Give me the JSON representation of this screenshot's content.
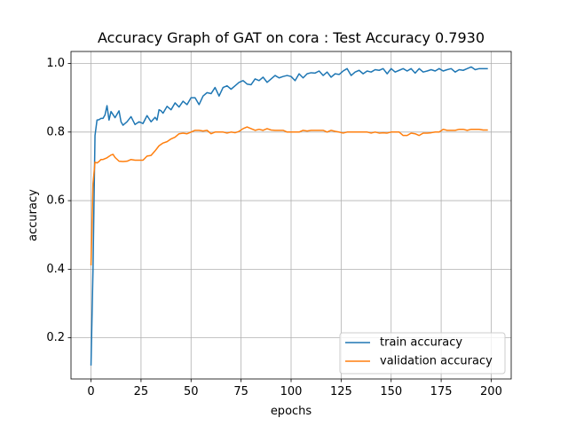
{
  "chart_data": {
    "type": "line",
    "title": "Accuracy Graph of GAT on cora : Test Accuracy 0.7930",
    "xlabel": "epochs",
    "ylabel": "accuracy",
    "xlim": [
      -10,
      210
    ],
    "ylim": [
      0.08,
      1.035
    ],
    "xticks": [
      0,
      25,
      50,
      75,
      100,
      125,
      150,
      175,
      200
    ],
    "yticks": [
      0.2,
      0.4,
      0.6,
      0.8,
      1.0
    ],
    "ytick_labels": [
      "0.2",
      "0.4",
      "0.6",
      "0.8",
      "1.0"
    ],
    "grid": true,
    "legend_position": "lower-right",
    "series": [
      {
        "name": "train accuracy",
        "color": "#1f77b4",
        "x": [
          0,
          1,
          2,
          3,
          4,
          5,
          6,
          7,
          8,
          9,
          10,
          12,
          14,
          15,
          16,
          18,
          20,
          22,
          24,
          26,
          28,
          30,
          32,
          33,
          34,
          35,
          36,
          38,
          40,
          42,
          44,
          46,
          48,
          50,
          52,
          54,
          56,
          58,
          60,
          62,
          64,
          66,
          68,
          70,
          72,
          74,
          76,
          78,
          80,
          82,
          84,
          86,
          88,
          90,
          92,
          94,
          96,
          98,
          100,
          102,
          104,
          106,
          108,
          110,
          112,
          114,
          116,
          118,
          120,
          122,
          124,
          126,
          128,
          130,
          132,
          134,
          136,
          138,
          140,
          142,
          144,
          146,
          148,
          150,
          152,
          154,
          156,
          158,
          160,
          162,
          164,
          166,
          168,
          170,
          172,
          174,
          176,
          178,
          180,
          182,
          184,
          186,
          188,
          190,
          192,
          194,
          196,
          198
        ],
        "y": [
          0.121,
          0.4,
          0.79,
          0.835,
          0.836,
          0.84,
          0.84,
          0.85,
          0.877,
          0.835,
          0.86,
          0.842,
          0.862,
          0.83,
          0.82,
          0.83,
          0.845,
          0.822,
          0.83,
          0.825,
          0.848,
          0.83,
          0.843,
          0.835,
          0.865,
          0.862,
          0.855,
          0.875,
          0.865,
          0.885,
          0.873,
          0.89,
          0.88,
          0.9,
          0.9,
          0.88,
          0.905,
          0.915,
          0.912,
          0.93,
          0.905,
          0.93,
          0.935,
          0.925,
          0.935,
          0.945,
          0.95,
          0.94,
          0.938,
          0.955,
          0.95,
          0.96,
          0.945,
          0.955,
          0.965,
          0.958,
          0.962,
          0.965,
          0.962,
          0.95,
          0.97,
          0.958,
          0.97,
          0.973,
          0.972,
          0.978,
          0.965,
          0.975,
          0.96,
          0.97,
          0.968,
          0.978,
          0.985,
          0.965,
          0.975,
          0.98,
          0.97,
          0.978,
          0.975,
          0.982,
          0.98,
          0.985,
          0.97,
          0.985,
          0.975,
          0.98,
          0.985,
          0.978,
          0.985,
          0.972,
          0.985,
          0.975,
          0.978,
          0.982,
          0.978,
          0.985,
          0.978,
          0.982,
          0.985,
          0.975,
          0.982,
          0.98,
          0.985,
          0.99,
          0.982,
          0.985,
          0.985,
          0.985
        ]
      },
      {
        "name": "validation accuracy",
        "color": "#ff7f0e",
        "x": [
          0,
          1,
          2,
          3,
          4,
          5,
          6,
          8,
          10,
          11,
          12,
          14,
          16,
          18,
          20,
          22,
          24,
          26,
          28,
          30,
          32,
          34,
          36,
          38,
          40,
          42,
          44,
          46,
          48,
          50,
          52,
          54,
          56,
          58,
          60,
          62,
          64,
          66,
          68,
          70,
          72,
          74,
          76,
          78,
          80,
          82,
          84,
          86,
          88,
          90,
          92,
          94,
          96,
          98,
          100,
          102,
          104,
          106,
          108,
          110,
          112,
          114,
          116,
          118,
          120,
          122,
          124,
          126,
          128,
          130,
          132,
          134,
          136,
          138,
          140,
          142,
          144,
          146,
          148,
          150,
          152,
          154,
          156,
          158,
          160,
          162,
          164,
          166,
          168,
          170,
          172,
          174,
          176,
          178,
          180,
          182,
          184,
          186,
          188,
          190,
          192,
          194,
          196,
          198
        ],
        "y": [
          0.413,
          0.65,
          0.712,
          0.71,
          0.714,
          0.72,
          0.72,
          0.725,
          0.733,
          0.735,
          0.726,
          0.715,
          0.714,
          0.715,
          0.72,
          0.718,
          0.718,
          0.718,
          0.73,
          0.732,
          0.745,
          0.76,
          0.768,
          0.772,
          0.78,
          0.785,
          0.795,
          0.797,
          0.795,
          0.8,
          0.805,
          0.805,
          0.803,
          0.805,
          0.795,
          0.8,
          0.8,
          0.8,
          0.797,
          0.8,
          0.798,
          0.802,
          0.81,
          0.815,
          0.81,
          0.805,
          0.808,
          0.805,
          0.81,
          0.806,
          0.805,
          0.805,
          0.805,
          0.8,
          0.8,
          0.8,
          0.8,
          0.805,
          0.803,
          0.805,
          0.805,
          0.805,
          0.805,
          0.8,
          0.805,
          0.802,
          0.8,
          0.797,
          0.8,
          0.8,
          0.8,
          0.8,
          0.8,
          0.8,
          0.797,
          0.8,
          0.797,
          0.798,
          0.797,
          0.8,
          0.8,
          0.8,
          0.79,
          0.79,
          0.797,
          0.795,
          0.79,
          0.797,
          0.797,
          0.798,
          0.8,
          0.8,
          0.808,
          0.805,
          0.805,
          0.805,
          0.808,
          0.808,
          0.805,
          0.808,
          0.808,
          0.808,
          0.806,
          0.806
        ]
      }
    ]
  }
}
